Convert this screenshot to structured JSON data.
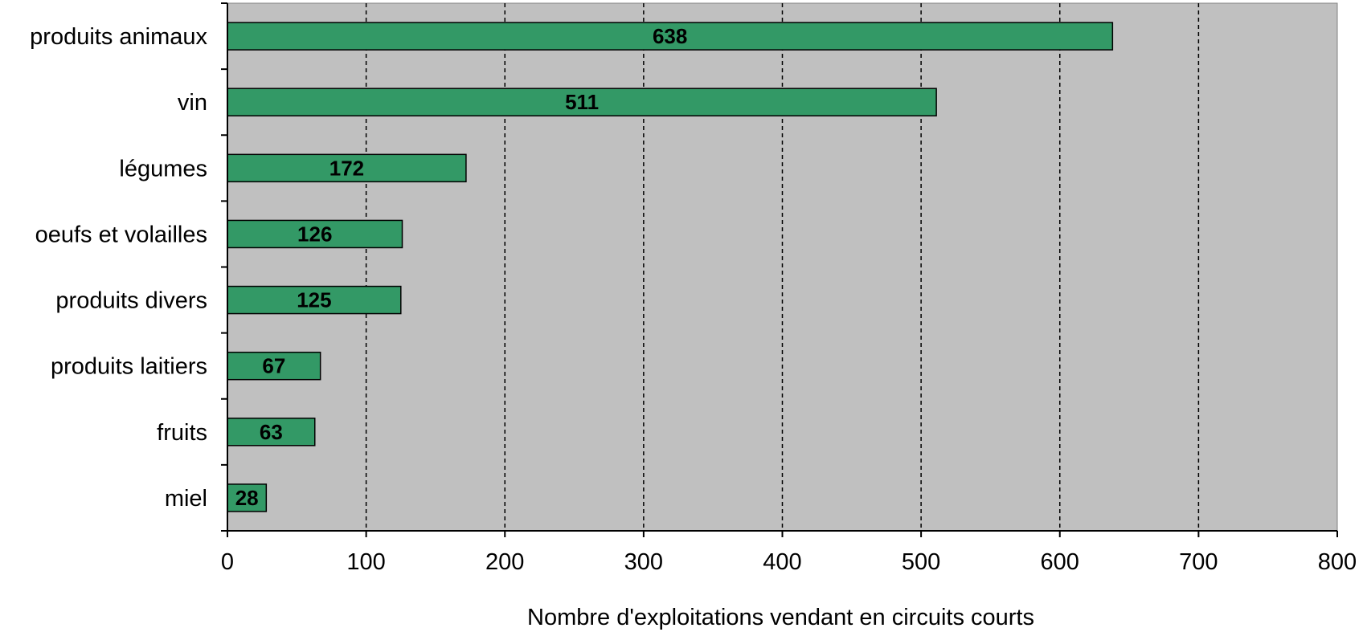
{
  "chart_data": {
    "type": "bar",
    "orientation": "horizontal",
    "categories": [
      "produits animaux",
      "vin",
      "légumes",
      "oeufs et volailles",
      "produits divers",
      "produits laitiers",
      "fruits",
      "miel"
    ],
    "values": [
      638,
      511,
      172,
      126,
      125,
      67,
      63,
      28
    ],
    "data_labels": [
      "638",
      "511",
      "172",
      "126",
      "125",
      "67",
      "63",
      "28"
    ],
    "xlabel": "Nombre d'exploitations vendant en circuits courts",
    "xlim": [
      0,
      800
    ],
    "xticks": [
      0,
      100,
      200,
      300,
      400,
      500,
      600,
      700,
      800
    ],
    "grid": "vertical dashed",
    "legend": "none",
    "colors": {
      "bar": "#339966",
      "plot_background": "#c0c0c0",
      "grid": "#000000"
    }
  }
}
